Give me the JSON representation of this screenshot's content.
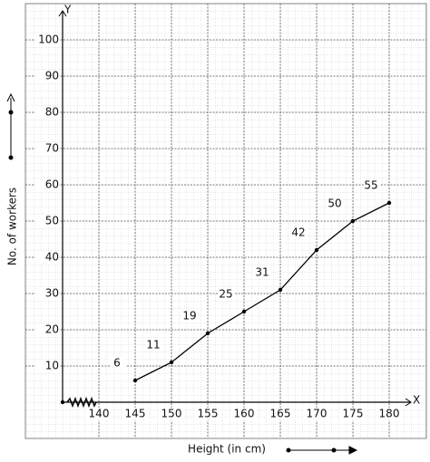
{
  "chart_data": {
    "type": "line",
    "x_label": "Height (in cm)",
    "y_label": "No. of workers",
    "x_axis_name": "X",
    "y_axis_name": "Y",
    "x": [
      145,
      150,
      155,
      160,
      165,
      170,
      175,
      180
    ],
    "series": [
      {
        "color": "#000000",
        "values": [
          6,
          11,
          19,
          25,
          31,
          42,
          50,
          55
        ]
      }
    ],
    "xlim": [
      135,
      183
    ],
    "ylim": [
      0,
      108
    ],
    "xticks": [
      140,
      145,
      150,
      155,
      160,
      165,
      170,
      175,
      180
    ],
    "yticks": [
      10,
      20,
      30,
      40,
      50,
      60,
      70,
      80,
      90,
      100
    ],
    "grid": true,
    "data_labels": true
  }
}
